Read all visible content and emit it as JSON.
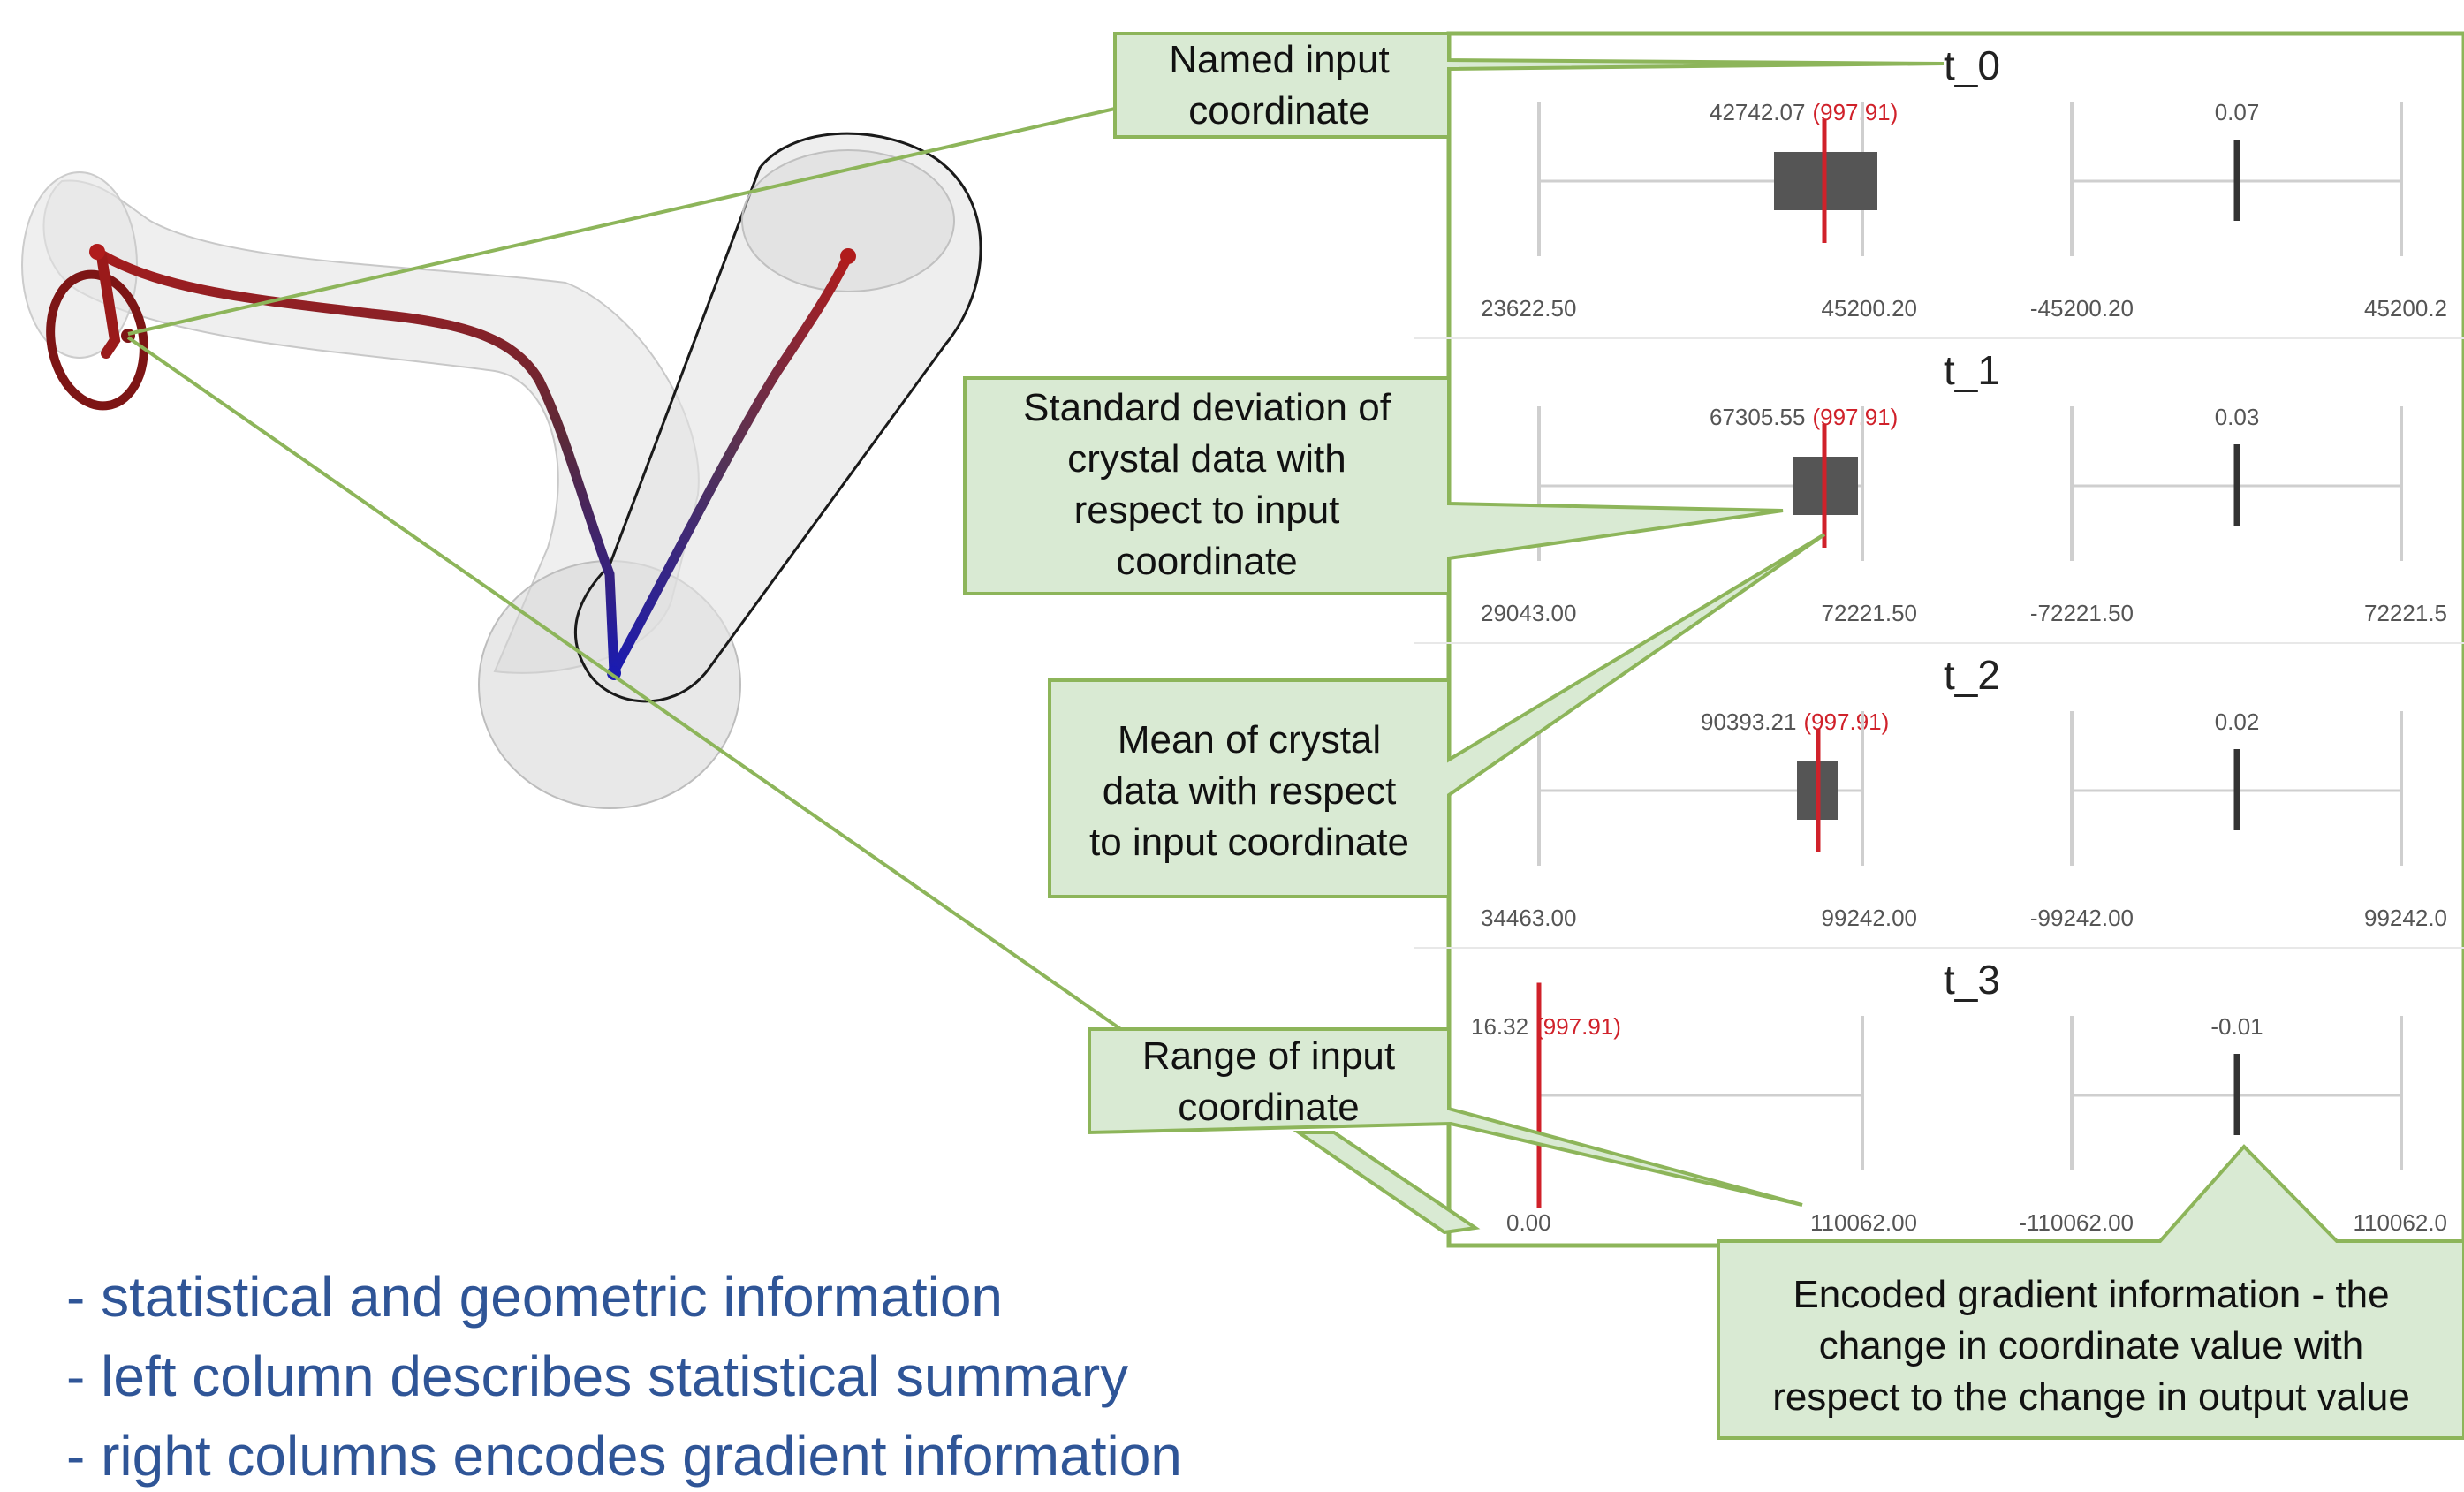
{
  "panels": [
    {
      "title": "t_0",
      "stat": "42742.07",
      "ref": "(997.91)",
      "range_min": "23622.50",
      "range_max": "45200.20",
      "grad_min": "-45200.20",
      "grad_max": "45200.2",
      "grad": "0.07"
    },
    {
      "title": "t_1",
      "stat": "67305.55",
      "ref": "(997.91)",
      "range_min": "29043.00",
      "range_max": "72221.50",
      "grad_min": "-72221.50",
      "grad_max": "72221.5",
      "grad": "0.03"
    },
    {
      "title": "t_2",
      "stat": "90393.21",
      "ref": "(997.91)",
      "range_min": "34463.00",
      "range_max": "99242.00",
      "grad_min": "-99242.00",
      "grad_max": "99242.0",
      "grad": "0.02"
    },
    {
      "title": "t_3",
      "stat": "16.32",
      "ref": "(997.91)",
      "range_min": "0.00",
      "range_max": "110062.00",
      "grad_min": "-110062.00",
      "grad_max": "110062.0",
      "grad": "-0.01"
    }
  ],
  "callouts": {
    "named_input": [
      "Named input",
      "coordinate"
    ],
    "std_dev": [
      "Standard deviation of",
      "crystal data with",
      "respect to input",
      "coordinate"
    ],
    "mean": [
      "Mean of crystal",
      "data with respect",
      "to input coordinate"
    ],
    "range": [
      "Range of input",
      "coordinate"
    ],
    "gradient": [
      "Encoded gradient information -  the",
      "change in coordinate value with",
      "respect to the change in output value"
    ]
  },
  "bullets": [
    "- statistical and geometric information",
    "- left column describes statistical summary",
    "- right columns encodes gradient information"
  ],
  "colors": {
    "callout_fill": "#d9ead3",
    "callout_border": "#8db55a",
    "connector": "#8db55a",
    "box": "#555555",
    "mean_line": "#d0212a",
    "bullet_text": "#2f5597"
  }
}
